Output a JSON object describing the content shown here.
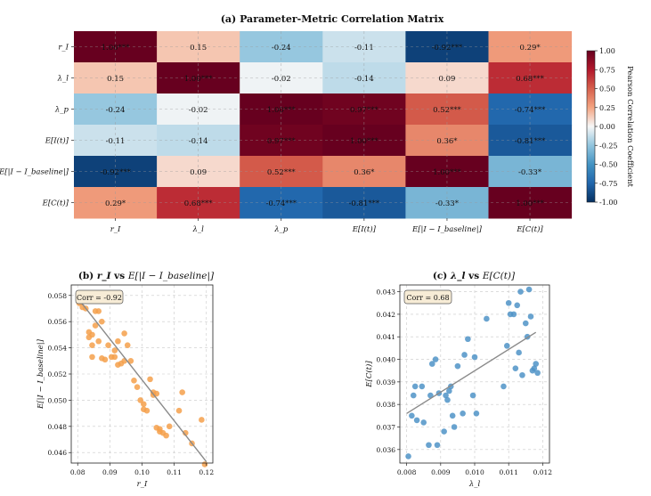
{
  "chart_data": [
    {
      "type": "heatmap",
      "title": "(a) Parameter-Metric Correlation Matrix",
      "row_labels": [
        "r_I",
        "λ_l",
        "λ_p",
        "E[I(t)]",
        "E[|I − I_baseline|]",
        "E[C(t)]"
      ],
      "col_labels": [
        "r_I",
        "λ_l",
        "λ_p",
        "E[I(t)]",
        "E[|I − I_baseline|]",
        "E[C(t)]"
      ],
      "values": [
        [
          1.0,
          0.15,
          -0.24,
          -0.11,
          -0.92,
          0.29
        ],
        [
          0.15,
          1.0,
          -0.02,
          -0.14,
          0.09,
          0.68
        ],
        [
          -0.24,
          -0.02,
          1.0,
          0.97,
          0.52,
          -0.74
        ],
        [
          -0.11,
          -0.14,
          0.97,
          1.0,
          0.36,
          -0.81
        ],
        [
          -0.92,
          0.09,
          0.52,
          0.36,
          1.0,
          -0.33
        ],
        [
          0.29,
          0.68,
          -0.74,
          -0.81,
          -0.33,
          1.0
        ]
      ],
      "annotations": [
        [
          "1.00***",
          "0.15",
          "-0.24",
          "-0.11",
          "-0.92***",
          "0.29*"
        ],
        [
          "0.15",
          "1.00***",
          "-0.02",
          "-0.14",
          "0.09",
          "0.68***"
        ],
        [
          "-0.24",
          "-0.02",
          "1.00***",
          "0.97***",
          "0.52***",
          "-0.74***"
        ],
        [
          "-0.11",
          "-0.14",
          "0.97***",
          "1.00***",
          "0.36*",
          "-0.81***"
        ],
        [
          "-0.92***",
          "0.09",
          "0.52***",
          "0.36*",
          "1.00***",
          "-0.33*"
        ],
        [
          "0.29*",
          "0.68***",
          "-0.74***",
          "-0.81***",
          "-0.33*",
          "1.00***"
        ]
      ],
      "colorbar": {
        "label": "Pearson Correlation Coefficient",
        "range": [
          -1.0,
          1.0
        ],
        "ticks": [
          "1.00",
          "0.75",
          "0.50",
          "0.25",
          "0.00",
          "-0.25",
          "-0.50",
          "-0.75",
          "-1.00"
        ],
        "tick_values": [
          1.0,
          0.75,
          0.5,
          0.25,
          0.0,
          -0.25,
          -0.5,
          -0.75,
          -1.0
        ]
      },
      "grid": true
    },
    {
      "type": "scatter",
      "title": "(b) r_I vs E[|I − I_baseline|]",
      "title_parts": {
        "prefix": "(b) ",
        "x": "r_I",
        "vs": " vs ",
        "y": "E[|I − I_baseline|]"
      },
      "xlabel": "r_I",
      "ylabel": "E[|I − I_baseline|]",
      "xlim": [
        0.078,
        0.122
      ],
      "ylim": [
        0.0452,
        0.0588
      ],
      "xticks": [
        0.08,
        0.09,
        0.1,
        0.11,
        0.12
      ],
      "xtick_labels": [
        "0.08",
        "0.09",
        "0.10",
        "0.11",
        "0.12"
      ],
      "yticks": [
        0.046,
        0.048,
        0.05,
        0.052,
        0.054,
        0.056,
        0.058
      ],
      "ytick_labels": [
        "0.046",
        "0.048",
        "0.050",
        "0.052",
        "0.054",
        "0.056",
        "0.058"
      ],
      "annotation": "Corr = -0.92",
      "point_color": "#f4a04b",
      "line_color": "#8a8a8a",
      "trend": {
        "x": [
          0.08,
          0.12
        ],
        "y": [
          0.0578,
          0.0453
        ]
      },
      "x": [
        0.0805,
        0.0815,
        0.0825,
        0.0835,
        0.0845,
        0.0835,
        0.0845,
        0.0855,
        0.0865,
        0.0855,
        0.0865,
        0.0845,
        0.0875,
        0.0885,
        0.0895,
        0.0875,
        0.0905,
        0.0915,
        0.0925,
        0.0935,
        0.0945,
        0.0955,
        0.0925,
        0.0945,
        0.0915,
        0.0965,
        0.0975,
        0.0985,
        0.0995,
        0.1005,
        0.1005,
        0.1015,
        0.1025,
        0.1035,
        0.1045,
        0.1035,
        0.1055,
        0.1065,
        0.1075,
        0.1085,
        0.1115,
        0.1125,
        0.1135,
        0.1155,
        0.1185,
        0.1195,
        0.1045,
        0.1055
      ],
      "y": [
        0.0574,
        0.0571,
        0.057,
        0.0552,
        0.055,
        0.0548,
        0.0542,
        0.0568,
        0.0568,
        0.0557,
        0.0545,
        0.0533,
        0.0532,
        0.0531,
        0.0542,
        0.056,
        0.0533,
        0.0533,
        0.0527,
        0.0528,
        0.0551,
        0.0542,
        0.0545,
        0.053,
        0.0538,
        0.053,
        0.0515,
        0.051,
        0.05,
        0.0497,
        0.0493,
        0.0492,
        0.0516,
        0.0506,
        0.0505,
        0.0504,
        0.0478,
        0.0475,
        0.0473,
        0.048,
        0.0492,
        0.0506,
        0.0475,
        0.0467,
        0.0485,
        0.0451,
        0.0479,
        0.0476
      ]
    },
    {
      "type": "scatter",
      "title": "(c) λ_l vs E[C(t)]",
      "title_parts": {
        "prefix": "(c) ",
        "x": "λ_l",
        "vs": " vs ",
        "y": "E[C(t)]"
      },
      "xlabel": "λ_l",
      "ylabel": "E[C(t)]",
      "xlim": [
        0.0078,
        0.0122
      ],
      "ylim": [
        0.0354,
        0.0433
      ],
      "xticks": [
        0.008,
        0.009,
        0.01,
        0.011,
        0.012
      ],
      "xtick_labels": [
        "0.008",
        "0.009",
        "0.010",
        "0.011",
        "0.012"
      ],
      "yticks": [
        0.036,
        0.037,
        0.038,
        0.039,
        0.04,
        0.041,
        0.042,
        0.043
      ],
      "ytick_labels": [
        "0.036",
        "0.037",
        "0.038",
        "0.039",
        "0.040",
        "0.041",
        "0.042",
        "0.043"
      ],
      "annotation": "Corr = 0.68",
      "point_color": "#4f93c7",
      "line_color": "#8a8a8a",
      "trend": {
        "x": [
          0.008,
          0.0118
        ],
        "y": [
          0.0376,
          0.0412
        ]
      },
      "x": [
        0.00805,
        0.00815,
        0.0082,
        0.00825,
        0.0083,
        0.00845,
        0.0085,
        0.00865,
        0.0087,
        0.00875,
        0.00885,
        0.0089,
        0.00895,
        0.0091,
        0.00915,
        0.0092,
        0.00925,
        0.0093,
        0.00935,
        0.0094,
        0.0095,
        0.00965,
        0.0097,
        0.0098,
        0.00995,
        0.01,
        0.01005,
        0.01035,
        0.01085,
        0.01095,
        0.011,
        0.01105,
        0.01115,
        0.0112,
        0.01125,
        0.0113,
        0.01135,
        0.0114,
        0.0115,
        0.01155,
        0.0116,
        0.01165,
        0.0117,
        0.01175,
        0.0118,
        0.01185
      ],
      "y": [
        0.0357,
        0.0375,
        0.0384,
        0.0388,
        0.0373,
        0.0388,
        0.0372,
        0.0362,
        0.0384,
        0.0398,
        0.04,
        0.0362,
        0.0385,
        0.0368,
        0.0384,
        0.0382,
        0.0386,
        0.0388,
        0.0375,
        0.037,
        0.0397,
        0.0376,
        0.0402,
        0.0409,
        0.0384,
        0.0401,
        0.0376,
        0.0418,
        0.0388,
        0.0406,
        0.0425,
        0.042,
        0.042,
        0.0396,
        0.0424,
        0.0403,
        0.043,
        0.0393,
        0.0416,
        0.041,
        0.0431,
        0.0419,
        0.0395,
        0.0396,
        0.0398,
        0.0394
      ]
    }
  ]
}
